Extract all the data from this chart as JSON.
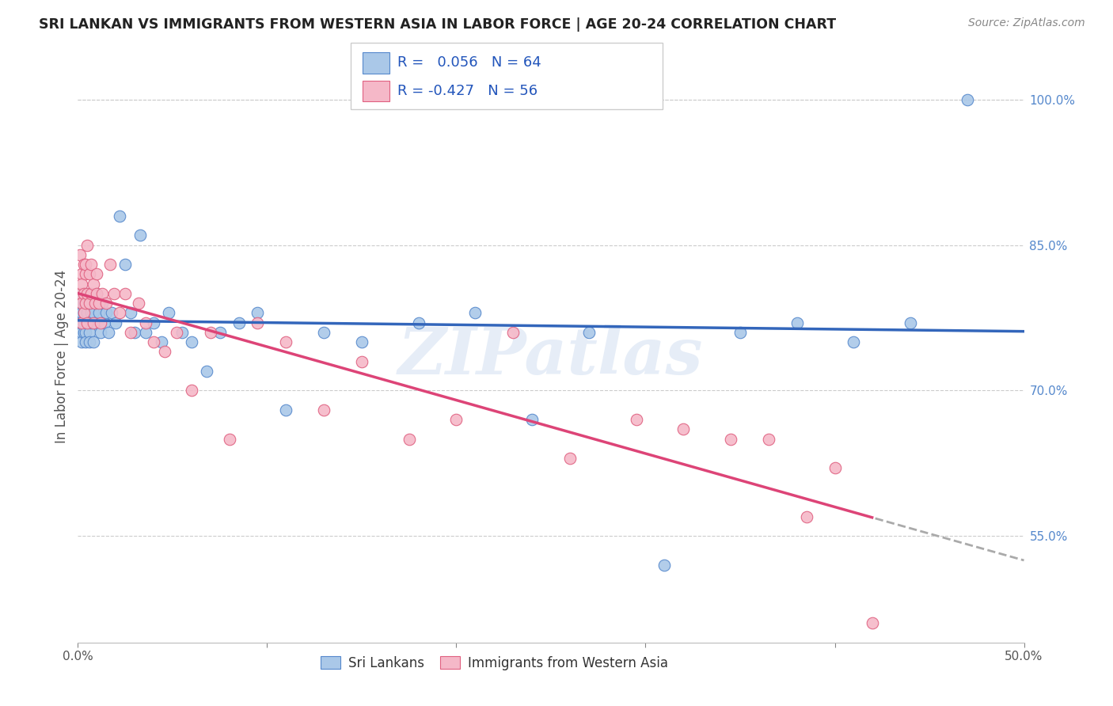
{
  "title": "SRI LANKAN VS IMMIGRANTS FROM WESTERN ASIA IN LABOR FORCE | AGE 20-24 CORRELATION CHART",
  "source": "Source: ZipAtlas.com",
  "ylabel": "In Labor Force | Age 20-24",
  "xlim": [
    0.0,
    0.5
  ],
  "ylim": [
    0.44,
    1.03
  ],
  "x_ticks": [
    0.0,
    0.1,
    0.2,
    0.3,
    0.4,
    0.5
  ],
  "y_ticks": [
    0.55,
    0.7,
    0.85,
    1.0
  ],
  "legend_label_blue": "Sri Lankans",
  "legend_label_pink": "Immigrants from Western Asia",
  "R_blue": "0.056",
  "N_blue": "64",
  "R_pink": "-0.427",
  "N_pink": "56",
  "blue_color": "#aac8e8",
  "pink_color": "#f5b8c8",
  "blue_edge_color": "#5588cc",
  "pink_edge_color": "#e06080",
  "blue_line_color": "#3366bb",
  "pink_line_color": "#dd4477",
  "watermark": "ZIPatlas",
  "sri_lankan_x": [
    0.001,
    0.001,
    0.001,
    0.002,
    0.002,
    0.002,
    0.002,
    0.002,
    0.003,
    0.003,
    0.003,
    0.003,
    0.004,
    0.004,
    0.004,
    0.005,
    0.005,
    0.005,
    0.006,
    0.006,
    0.006,
    0.007,
    0.007,
    0.008,
    0.008,
    0.009,
    0.01,
    0.01,
    0.011,
    0.012,
    0.013,
    0.014,
    0.015,
    0.016,
    0.018,
    0.02,
    0.022,
    0.025,
    0.028,
    0.03,
    0.033,
    0.036,
    0.04,
    0.044,
    0.048,
    0.055,
    0.06,
    0.068,
    0.075,
    0.085,
    0.095,
    0.11,
    0.13,
    0.15,
    0.18,
    0.21,
    0.24,
    0.27,
    0.31,
    0.35,
    0.38,
    0.41,
    0.44,
    0.47
  ],
  "sri_lankan_y": [
    0.78,
    0.77,
    0.79,
    0.76,
    0.78,
    0.8,
    0.75,
    0.77,
    0.79,
    0.76,
    0.78,
    0.77,
    0.76,
    0.8,
    0.75,
    0.78,
    0.79,
    0.77,
    0.76,
    0.75,
    0.8,
    0.77,
    0.78,
    0.75,
    0.78,
    0.77,
    0.8,
    0.77,
    0.78,
    0.76,
    0.79,
    0.77,
    0.78,
    0.76,
    0.78,
    0.77,
    0.88,
    0.83,
    0.78,
    0.76,
    0.86,
    0.76,
    0.77,
    0.75,
    0.78,
    0.76,
    0.75,
    0.72,
    0.76,
    0.77,
    0.78,
    0.68,
    0.76,
    0.75,
    0.77,
    0.78,
    0.67,
    0.76,
    0.52,
    0.76,
    0.77,
    0.75,
    0.77,
    1.0
  ],
  "western_asia_x": [
    0.001,
    0.001,
    0.002,
    0.002,
    0.002,
    0.002,
    0.003,
    0.003,
    0.003,
    0.004,
    0.004,
    0.004,
    0.005,
    0.005,
    0.005,
    0.006,
    0.006,
    0.007,
    0.007,
    0.008,
    0.008,
    0.009,
    0.01,
    0.01,
    0.011,
    0.012,
    0.013,
    0.015,
    0.017,
    0.019,
    0.022,
    0.025,
    0.028,
    0.032,
    0.036,
    0.04,
    0.046,
    0.052,
    0.06,
    0.07,
    0.08,
    0.095,
    0.11,
    0.13,
    0.15,
    0.175,
    0.2,
    0.23,
    0.26,
    0.295,
    0.32,
    0.345,
    0.365,
    0.385,
    0.4,
    0.42
  ],
  "western_asia_y": [
    0.84,
    0.8,
    0.82,
    0.79,
    0.81,
    0.77,
    0.83,
    0.78,
    0.8,
    0.82,
    0.79,
    0.83,
    0.8,
    0.77,
    0.85,
    0.82,
    0.79,
    0.8,
    0.83,
    0.77,
    0.81,
    0.79,
    0.82,
    0.8,
    0.79,
    0.77,
    0.8,
    0.79,
    0.83,
    0.8,
    0.78,
    0.8,
    0.76,
    0.79,
    0.77,
    0.75,
    0.74,
    0.76,
    0.7,
    0.76,
    0.65,
    0.77,
    0.75,
    0.68,
    0.73,
    0.65,
    0.67,
    0.76,
    0.63,
    0.67,
    0.66,
    0.65,
    0.65,
    0.57,
    0.62,
    0.46
  ]
}
